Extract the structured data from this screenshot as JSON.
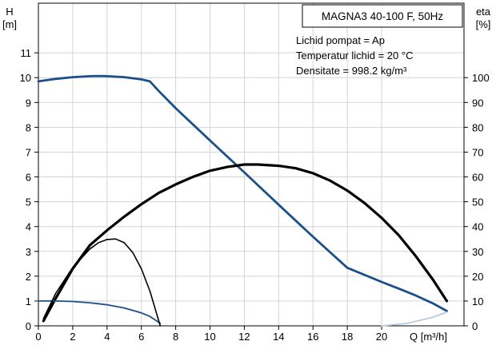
{
  "chart_data": {
    "type": "line",
    "title": "MAGNA3 40-100 F, 50Hz",
    "info_lines": [
      "Lichid pompat = Ap",
      "Temperatur   lichid = 20 °C",
      "Densitate = 998.2 kg/m³"
    ],
    "xlabel": "Q [m³/h]",
    "ylabel_left": [
      "H",
      "[m]"
    ],
    "ylabel_right": [
      "eta",
      "[%]"
    ],
    "xlim": [
      0,
      24.8
    ],
    "ylim_left": [
      0,
      13
    ],
    "ylim_right": [
      0,
      130
    ],
    "x_ticks": [
      "0",
      "2",
      "4",
      "6",
      "8",
      "10",
      "12",
      "14",
      "16",
      "18",
      "20"
    ],
    "y_ticks_left": [
      "0",
      "1",
      "2",
      "3",
      "4",
      "5",
      "6",
      "7",
      "8",
      "9",
      "10",
      "11"
    ],
    "y_ticks_right": [
      "0",
      "10",
      "20",
      "30",
      "40",
      "50",
      "60",
      "70",
      "80",
      "90",
      "100"
    ],
    "grid": true,
    "colors": {
      "head": "#1a4f8a",
      "efficiency": "#000000",
      "grid": "#d4d4d4",
      "extension": "#b9cbe0"
    },
    "series": [
      {
        "role": "head_max",
        "axis": "left",
        "x": [
          0,
          1,
          2,
          3,
          3.5,
          4,
          5,
          6,
          6.5,
          7,
          8,
          10,
          12,
          14,
          16,
          18,
          20,
          21,
          22,
          23,
          23.8
        ],
        "y": [
          9.85,
          9.95,
          10.02,
          10.06,
          10.07,
          10.06,
          10.02,
          9.93,
          9.85,
          9.47,
          8.77,
          7.47,
          6.18,
          4.88,
          3.59,
          2.34,
          1.77,
          1.5,
          1.22,
          0.9,
          0.6
        ]
      },
      {
        "role": "efficiency_max",
        "axis": "right",
        "x": [
          0.3,
          1,
          2,
          3,
          4,
          5,
          6,
          7,
          8,
          9,
          10,
          11,
          12,
          12.8,
          14,
          15,
          16,
          17,
          18,
          19,
          20,
          21,
          22,
          23,
          23.8
        ],
        "y": [
          2,
          11,
          23,
          32.5,
          38.5,
          44,
          49,
          53.5,
          57,
          60,
          62.5,
          64,
          65,
          65,
          64.5,
          63.5,
          61.5,
          58.5,
          54.5,
          49.5,
          43.5,
          36.5,
          28,
          18.5,
          10
        ]
      },
      {
        "role": "head_min",
        "axis": "left",
        "x": [
          0,
          1,
          2,
          3,
          4,
          5,
          6,
          6.5,
          7.1
        ],
        "y": [
          1.0,
          1.0,
          0.98,
          0.93,
          0.85,
          0.72,
          0.52,
          0.38,
          0.1
        ]
      },
      {
        "role": "efficiency_min",
        "axis": "right",
        "x": [
          0.3,
          1,
          2,
          3,
          3.5,
          4,
          4.5,
          5,
          5.5,
          6,
          6.5,
          7.1
        ],
        "y": [
          3,
          13,
          23.5,
          31,
          33.5,
          34.8,
          35,
          33.5,
          29.5,
          23,
          14,
          0
        ]
      },
      {
        "role": "head_extension",
        "axis": "left",
        "x": [
          20,
          21.5,
          23,
          23.8
        ],
        "y": [
          0,
          0.1,
          0.35,
          0.55
        ]
      }
    ]
  }
}
